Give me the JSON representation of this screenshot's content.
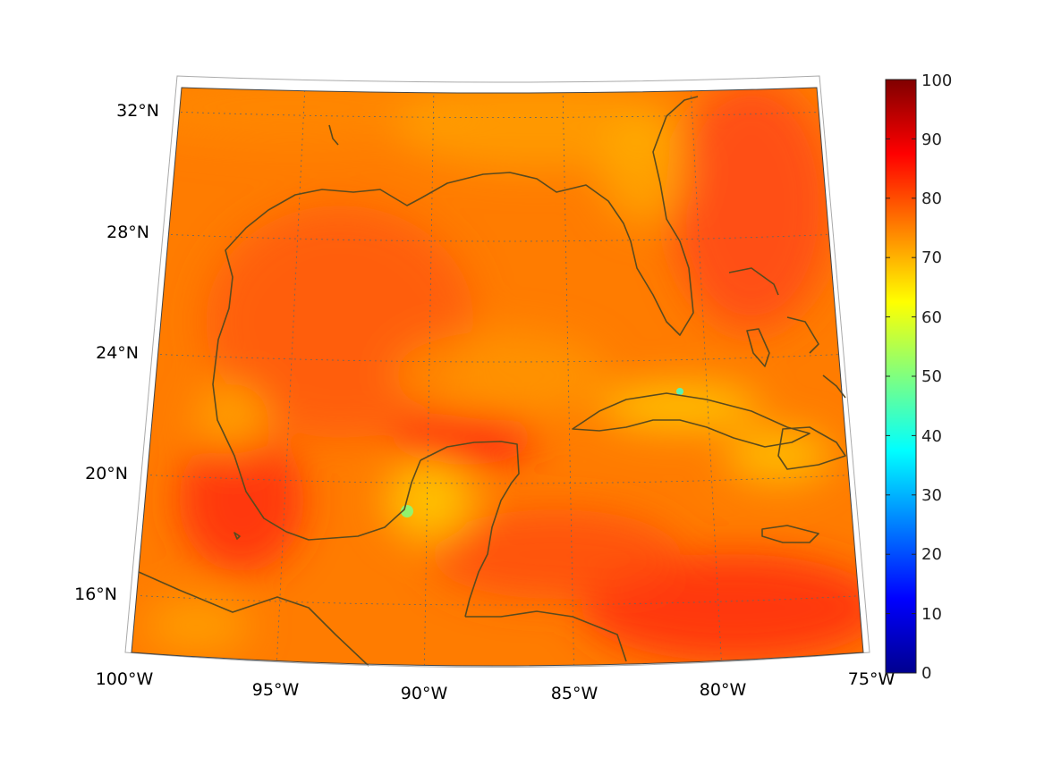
{
  "map": {
    "projection": "conic",
    "lon_labels": [
      "100°W",
      "95°W",
      "90°W",
      "85°W",
      "80°W",
      "75°W"
    ],
    "lat_labels": [
      "16°N",
      "20°N",
      "24°N",
      "28°N",
      "32°N"
    ],
    "colormap": "jet",
    "field_tone": "mostly orange (about 70-80), red over the Bay of Campeche, Atlantic and Caribbean, yellow-green near Yucatan and Cuba",
    "coastline_color": "#5a4a1e",
    "colors": {
      "orange": "#ff7a00",
      "red_orange": "#ff4a10",
      "yellow": "#ffc400"
    }
  },
  "colorbar": {
    "min": 0,
    "max": 100,
    "tick_labels": [
      "0",
      "10",
      "20",
      "30",
      "40",
      "50",
      "60",
      "70",
      "80",
      "90",
      "100"
    ]
  }
}
